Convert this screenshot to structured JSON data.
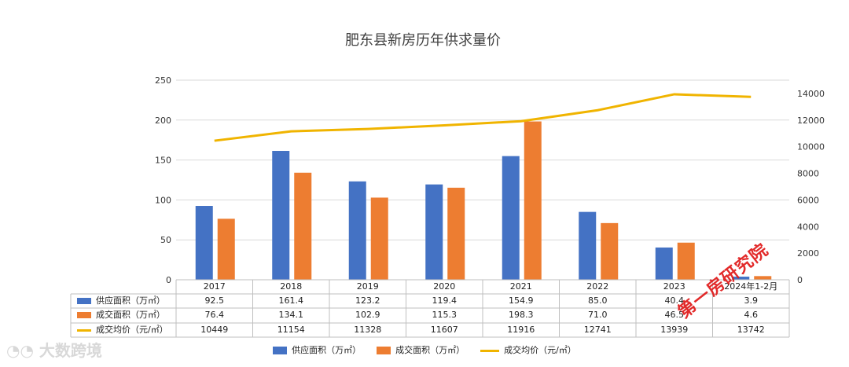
{
  "chart_data": {
    "type": "bar",
    "title": "肥东县新房历年供求量价",
    "categories": [
      "2017",
      "2018",
      "2019",
      "2020",
      "2021",
      "2022",
      "2023",
      "2024年1-2月"
    ],
    "left_axis": {
      "min": 0,
      "max": 250,
      "ticks": [
        "0",
        "50",
        "100",
        "150",
        "200",
        "250"
      ]
    },
    "right_axis": {
      "min": 0,
      "max": 15000,
      "ticks": [
        "0",
        "2000",
        "4000",
        "6000",
        "8000",
        "10000",
        "12000",
        "14000"
      ]
    },
    "series": [
      {
        "name": "供应面积（万㎡）",
        "type": "bar",
        "axis": "left",
        "color": "#4472c4",
        "values": [
          92.5,
          161.4,
          123.2,
          119.4,
          154.9,
          85.0,
          40.4,
          3.9
        ],
        "labels": [
          "92.5",
          "161.4",
          "123.2",
          "119.4",
          "154.9",
          "85.0",
          "40.4",
          "3.9"
        ]
      },
      {
        "name": "成交面积（万㎡）",
        "type": "bar",
        "axis": "left",
        "color": "#ed7d31",
        "values": [
          76.4,
          134.1,
          102.9,
          115.3,
          198.3,
          71.0,
          46.5,
          4.6
        ],
        "labels": [
          "76.4",
          "134.1",
          "102.9",
          "115.3",
          "198.3",
          "71.0",
          "46.5",
          "4.6"
        ]
      },
      {
        "name": "成交均价（元/㎡）",
        "type": "line",
        "axis": "right",
        "color": "#f0b400",
        "values": [
          10449,
          11154,
          11328,
          11607,
          11916,
          12741,
          13939,
          13742
        ],
        "labels": [
          "10449",
          "11154",
          "11328",
          "11607",
          "11916",
          "12741",
          "13939",
          "13742"
        ]
      }
    ],
    "legend_position": "bottom",
    "gridlines": true
  },
  "watermarks": {
    "stamp": "第一房研究院",
    "brand": "大数跨境"
  }
}
